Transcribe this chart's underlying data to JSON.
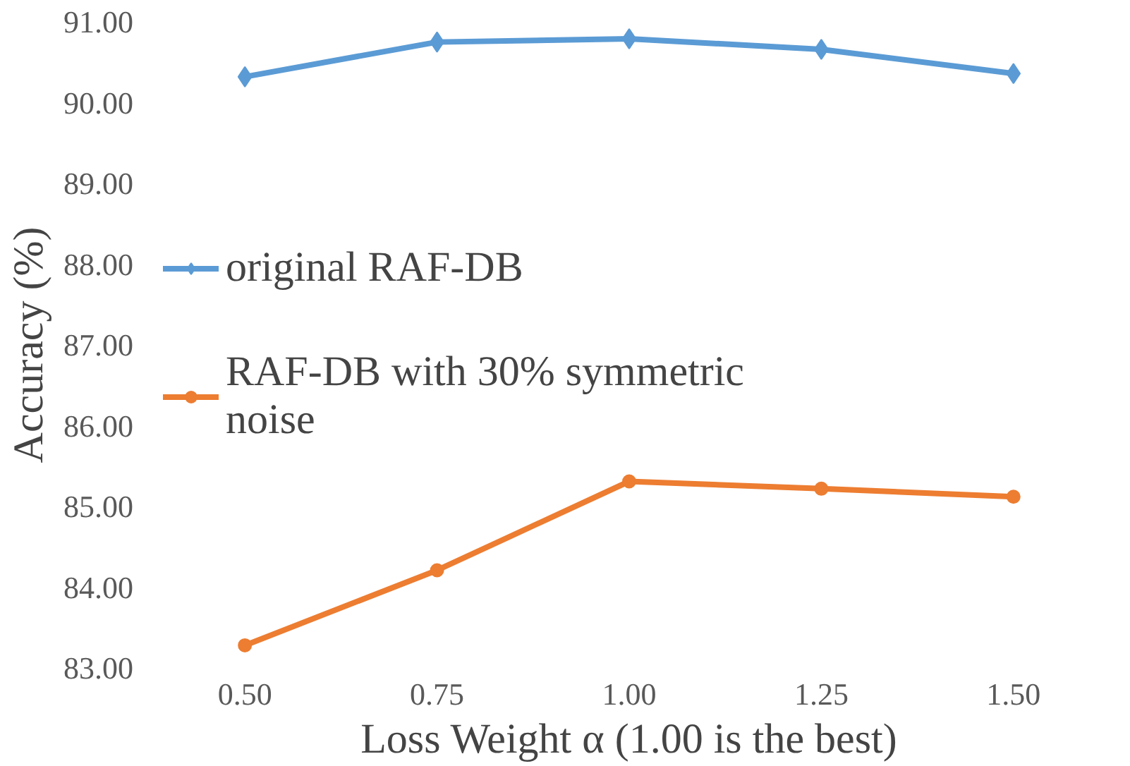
{
  "chart_data": {
    "type": "line",
    "xlabel": "Loss Weight α (1.00 is the best)",
    "ylabel": "Accuracy (%)",
    "categories": [
      "0.50",
      "0.75",
      "1.00",
      "1.25",
      "1.50"
    ],
    "series": [
      {
        "name": "original RAF-DB",
        "color": "#5b9bd5",
        "marker": "diamond",
        "values": [
          90.32,
          90.75,
          90.79,
          90.66,
          90.36
        ]
      },
      {
        "name": "RAF-DB with 30% symmetric noise",
        "color": "#ed7d31",
        "marker": "circle",
        "values": [
          83.28,
          84.21,
          85.31,
          85.22,
          85.12
        ]
      }
    ],
    "ylim": [
      83,
      91
    ],
    "yticks": [
      {
        "value": 83,
        "label": "83.00"
      },
      {
        "value": 84,
        "label": "84.00"
      },
      {
        "value": 85,
        "label": "85.00"
      },
      {
        "value": 86,
        "label": "86.00"
      },
      {
        "value": 87,
        "label": "87.00"
      },
      {
        "value": 88,
        "label": "88.00"
      },
      {
        "value": 89,
        "label": "89.00"
      },
      {
        "value": 90,
        "label": "90.00"
      },
      {
        "value": 91,
        "label": "91.00"
      }
    ],
    "grid": false,
    "legend": "left",
    "line_style": "solid"
  }
}
